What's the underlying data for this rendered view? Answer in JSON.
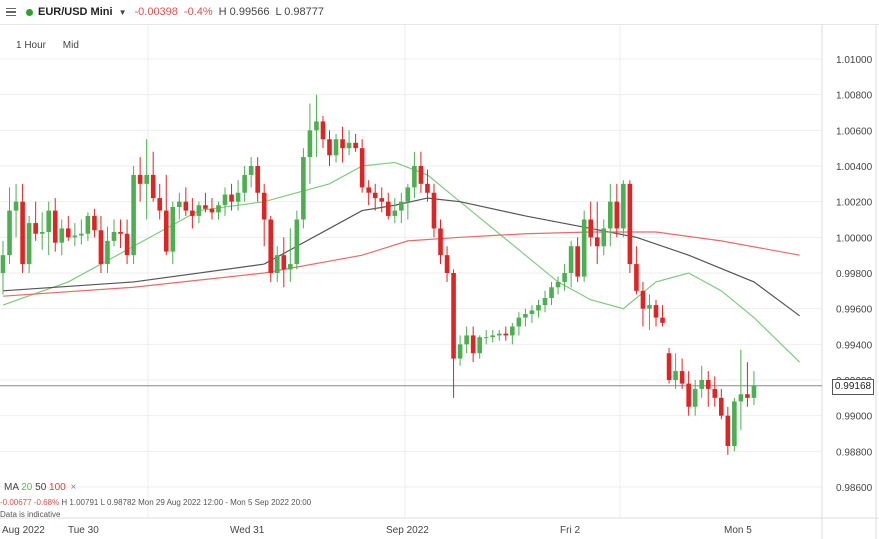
{
  "header": {
    "instrument": "EUR/USD Mini",
    "change": "-0.00398",
    "change_pct": "-0.4%",
    "high": "H 0.99566",
    "low": "L 0.98777",
    "status_color": "#2ca02c"
  },
  "toolbar": {
    "interval": "1 Hour",
    "price_type": "Mid"
  },
  "legend": {
    "ma_label": "MA",
    "ma_fast": "20",
    "ma_mid": "50",
    "ma_slow": "100",
    "close_icon": "×"
  },
  "info": {
    "change": "-0.00677",
    "change_pct": "-0.68%",
    "high": "H 1.00791",
    "low": "L 0.98782",
    "range": "Mon 29 Aug 2022 12:00 - Mon 5 Sep 2022 20:00",
    "note": "Data is indicative"
  },
  "current_price": "0.99168",
  "colors": {
    "up": "#4caf50",
    "down": "#e02424",
    "ma20": "#7ccc7c",
    "ma50": "#555555",
    "ma100": "#e86b6b"
  },
  "chart_data": {
    "type": "candlestick",
    "y_axis_ticks": [
      "1.01000",
      "1.00800",
      "1.00600",
      "1.00400",
      "1.00200",
      "1.00000",
      "0.99800",
      "0.99600",
      "0.99400",
      "0.99200",
      "0.99000",
      "0.98800",
      "0.98600"
    ],
    "ylim": [
      0.9845,
      1.0115
    ],
    "x_axis_labels": [
      "Aug 2022",
      "Tue 30",
      "Wed 31",
      "Sep 2022",
      "Fri 2",
      "Mon 5"
    ],
    "candles": [
      [
        0.998,
        0.9998,
        0.9968,
        0.999
      ],
      [
        0.999,
        1.0028,
        0.9985,
        1.0015
      ],
      [
        1.0015,
        1.003,
        1.0,
        1.002
      ],
      [
        1.002,
        1.003,
        0.998,
        0.9985
      ],
      [
        0.9985,
        1.0012,
        0.998,
        1.0008
      ],
      [
        1.0008,
        1.002,
        0.9998,
        1.0002
      ],
      [
        1.0002,
        1.0014,
        0.9993,
        1.0003
      ],
      [
        1.0003,
        1.002,
        0.999,
        1.0015
      ],
      [
        1.0015,
        1.0022,
        0.9992,
        0.9997
      ],
      [
        0.9997,
        1.001,
        0.999,
        1.0005
      ],
      [
        1.0005,
        1.0012,
        0.9998,
        1.0
      ],
      [
        1.0,
        1.0008,
        0.9995,
        1.0001
      ],
      [
        1.0001,
        1.001,
        0.9996,
        1.0002
      ],
      [
        1.0002,
        1.0014,
        0.9998,
        1.0012
      ],
      [
        1.0012,
        1.0016,
        1.0,
        1.0004
      ],
      [
        1.0004,
        1.0012,
        0.998,
        0.9985
      ],
      [
        0.9985,
        1.0006,
        0.998,
        0.9998
      ],
      [
        0.9998,
        1.001,
        0.9995,
        1.0003
      ],
      [
        1.0003,
        1.001,
        0.9994,
        1.0002
      ],
      [
        1.0002,
        1.001,
        0.9985,
        0.999
      ],
      [
        0.999,
        1.004,
        0.9985,
        1.0035
      ],
      [
        1.0035,
        1.0045,
        1.002,
        1.003
      ],
      [
        1.003,
        1.0055,
        1.001,
        1.0035
      ],
      [
        1.0035,
        1.0048,
        1.002,
        1.0022
      ],
      [
        1.0022,
        1.003,
        1.001,
        1.0015
      ],
      [
        1.0015,
        1.0035,
        0.999,
        0.9992
      ],
      [
        0.9992,
        1.002,
        0.9985,
        1.0017
      ],
      [
        1.0017,
        1.0025,
        1.001,
        1.002
      ],
      [
        1.002,
        1.0028,
        1.0012,
        1.0015
      ],
      [
        1.0015,
        1.0022,
        1.0005,
        1.0012
      ],
      [
        1.0012,
        1.002,
        1.0008,
        1.0018
      ],
      [
        1.0018,
        1.0025,
        1.0014,
        1.0016
      ],
      [
        1.0016,
        1.0022,
        1.001,
        1.0014
      ],
      [
        1.0014,
        1.002,
        1.001,
        1.0018
      ],
      [
        1.0018,
        1.0028,
        1.0012,
        1.0024
      ],
      [
        1.0024,
        1.003,
        1.0015,
        1.002
      ],
      [
        1.002,
        1.0032,
        1.0015,
        1.0025
      ],
      [
        1.0025,
        1.004,
        1.002,
        1.0035
      ],
      [
        1.0035,
        1.0045,
        1.0028,
        1.004
      ],
      [
        1.004,
        1.0045,
        1.002,
        1.0025
      ],
      [
        1.0025,
        1.003,
        0.9995,
        1.001
      ],
      [
        1.001,
        1.0012,
        0.9975,
        0.998
      ],
      [
        0.998,
        0.9995,
        0.9975,
        0.999
      ],
      [
        0.999,
        1.0,
        0.9972,
        0.9982
      ],
      [
        0.9982,
        1.0005,
        0.9975,
        0.9985
      ],
      [
        0.9985,
        1.0015,
        0.9982,
        1.001
      ],
      [
        1.001,
        1.005,
        1.0005,
        1.0045
      ],
      [
        1.0045,
        1.0075,
        1.003,
        1.006
      ],
      [
        1.006,
        1.008,
        1.0045,
        1.0065
      ],
      [
        1.0065,
        1.0068,
        1.005,
        1.0055
      ],
      [
        1.0055,
        1.006,
        1.004,
        1.0046
      ],
      [
        1.0046,
        1.0058,
        1.0042,
        1.0055
      ],
      [
        1.0055,
        1.0062,
        1.0042,
        1.005
      ],
      [
        1.005,
        1.006,
        1.0046,
        1.0053
      ],
      [
        1.0053,
        1.0058,
        1.0048,
        1.005
      ],
      [
        1.005,
        1.0055,
        1.0025,
        1.0028
      ],
      [
        1.0028,
        1.0032,
        1.0018,
        1.0025
      ],
      [
        1.0025,
        1.003,
        1.0015,
        1.0022
      ],
      [
        1.0022,
        1.0028,
        1.0014,
        1.002
      ],
      [
        1.002,
        1.0025,
        1.001,
        1.0012
      ],
      [
        1.0012,
        1.0022,
        1.0008,
        1.0015
      ],
      [
        1.0015,
        1.0025,
        1.0008,
        1.002
      ],
      [
        1.002,
        1.003,
        1.001,
        1.0028
      ],
      [
        1.0028,
        1.0048,
        1.0022,
        1.004
      ],
      [
        1.004,
        1.0048,
        1.0025,
        1.003
      ],
      [
        1.003,
        1.0038,
        1.002,
        1.0025
      ],
      [
        1.0025,
        1.003,
        1.0,
        1.0005
      ],
      [
        1.0005,
        1.001,
        0.9985,
        0.999
      ],
      [
        0.999,
        0.9995,
        0.9975,
        0.998
      ],
      [
        0.998,
        0.9982,
        0.991,
        0.9932
      ],
      [
        0.9932,
        0.9945,
        0.9928,
        0.994
      ],
      [
        0.994,
        0.995,
        0.9935,
        0.9945
      ],
      [
        0.9945,
        0.995,
        0.993,
        0.9935
      ],
      [
        0.9935,
        0.9945,
        0.9932,
        0.9944
      ],
      [
        0.9944,
        0.9948,
        0.994,
        0.9944
      ],
      [
        0.9944,
        0.9948,
        0.9941,
        0.9945
      ],
      [
        0.9945,
        0.9948,
        0.9942,
        0.9946
      ],
      [
        0.9946,
        0.995,
        0.9942,
        0.9945
      ],
      [
        0.9945,
        0.9952,
        0.994,
        0.995
      ],
      [
        0.995,
        0.9958,
        0.9945,
        0.9955
      ],
      [
        0.9955,
        0.996,
        0.995,
        0.9957
      ],
      [
        0.9957,
        0.9962,
        0.9952,
        0.9959
      ],
      [
        0.9959,
        0.9965,
        0.9955,
        0.9962
      ],
      [
        0.9962,
        0.997,
        0.9958,
        0.9966
      ],
      [
        0.9966,
        0.9975,
        0.9962,
        0.9972
      ],
      [
        0.9972,
        0.9978,
        0.9968,
        0.9975
      ],
      [
        0.9975,
        0.9985,
        0.997,
        0.998
      ],
      [
        0.998,
        0.9998,
        0.9972,
        0.9995
      ],
      [
        0.9995,
        1.0,
        0.9975,
        0.9978
      ],
      [
        0.9978,
        1.0015,
        0.9975,
        1.001
      ],
      [
        1.001,
        1.002,
        0.9995,
        1.0
      ],
      [
        1.0,
        1.002,
        0.9985,
        0.9995
      ],
      [
        0.9995,
        1.001,
        0.999,
        1.0005
      ],
      [
        1.0005,
        1.003,
        0.9995,
        1.002
      ],
      [
        1.002,
        1.003,
        1.0,
        1.0005
      ],
      [
        1.0005,
        1.0032,
        1.0,
        1.003
      ],
      [
        1.003,
        1.0032,
        0.998,
        0.9985
      ],
      [
        0.9985,
        0.9995,
        0.9968,
        0.997
      ],
      [
        0.997,
        0.9975,
        0.995,
        0.996
      ],
      [
        0.996,
        0.9968,
        0.9948,
        0.9962
      ],
      [
        0.9962,
        0.9965,
        0.995,
        0.9955
      ],
      [
        0.9955,
        0.9962,
        0.995,
        0.9952
      ],
      [
        0.9935,
        0.9938,
        0.9918,
        0.992
      ],
      [
        0.992,
        0.9935,
        0.9915,
        0.9925
      ],
      [
        0.9925,
        0.9932,
        0.9915,
        0.9918
      ],
      [
        0.9918,
        0.9925,
        0.99,
        0.9905
      ],
      [
        0.9905,
        0.992,
        0.99,
        0.9915
      ],
      [
        0.9915,
        0.9928,
        0.991,
        0.992
      ],
      [
        0.992,
        0.9925,
        0.9905,
        0.9915
      ],
      [
        0.9915,
        0.9922,
        0.9905,
        0.991
      ],
      [
        0.991,
        0.9915,
        0.9898,
        0.99
      ],
      [
        0.99,
        0.9905,
        0.9878,
        0.9883
      ],
      [
        0.9883,
        0.991,
        0.988,
        0.9908
      ],
      [
        0.9908,
        0.9937,
        0.9892,
        0.9912
      ],
      [
        0.9912,
        0.993,
        0.9905,
        0.991
      ],
      [
        0.991,
        0.9925,
        0.9906,
        0.9917
      ]
    ],
    "ma_series": [
      {
        "name": "20",
        "values": [
          [
            0,
            0.9962
          ],
          [
            10,
            0.9975
          ],
          [
            20,
            0.9995
          ],
          [
            30,
            1.0015
          ],
          [
            40,
            1.002
          ],
          [
            50,
            1.003
          ],
          [
            55,
            1.004
          ],
          [
            60,
            1.0042
          ],
          [
            65,
            1.0035
          ],
          [
            70,
            1.002
          ],
          [
            75,
            1.0005
          ],
          [
            80,
            0.999
          ],
          [
            85,
            0.9975
          ],
          [
            90,
            0.9965
          ],
          [
            95,
            0.996
          ],
          [
            100,
            0.9975
          ],
          [
            105,
            0.998
          ],
          [
            110,
            0.997
          ],
          [
            115,
            0.9955
          ],
          [
            122,
            0.993
          ]
        ]
      },
      {
        "name": "50",
        "values": [
          [
            0,
            0.997
          ],
          [
            20,
            0.9975
          ],
          [
            40,
            0.9985
          ],
          [
            45,
            0.9995
          ],
          [
            50,
            1.0005
          ],
          [
            55,
            1.0015
          ],
          [
            60,
            1.0018
          ],
          [
            65,
            1.0022
          ],
          [
            70,
            1.002
          ],
          [
            80,
            1.0012
          ],
          [
            90,
            1.0005
          ],
          [
            97,
            1.0
          ],
          [
            105,
            0.999
          ],
          [
            115,
            0.9975
          ],
          [
            122,
            0.9956
          ]
        ]
      },
      {
        "name": "100",
        "values": [
          [
            0,
            0.9967
          ],
          [
            20,
            0.9972
          ],
          [
            40,
            0.998
          ],
          [
            55,
            0.999
          ],
          [
            62,
            0.9998
          ],
          [
            70,
            1.0
          ],
          [
            80,
            1.0002
          ],
          [
            90,
            1.0003
          ],
          [
            100,
            1.0003
          ],
          [
            110,
            0.9998
          ],
          [
            122,
            0.999
          ]
        ]
      }
    ]
  }
}
